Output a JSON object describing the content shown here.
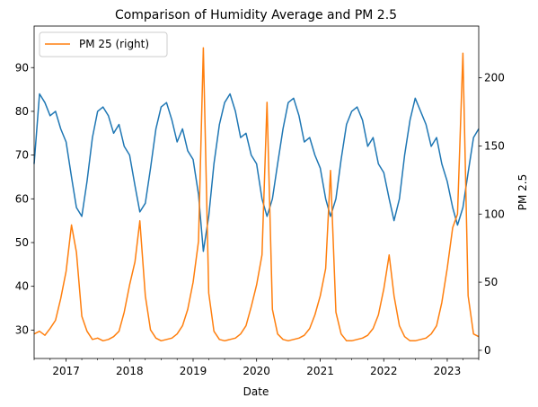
{
  "chart_data": {
    "type": "line",
    "title": "Comparison of Humidity Average and PM 2.5",
    "xlabel": "Date",
    "ylabel_left": "",
    "ylabel_right": "PM 2.5",
    "x_range": [
      "2016-07-01",
      "2023-07-01"
    ],
    "x_tick_labels": [
      "2017",
      "2018",
      "2019",
      "2020",
      "2021",
      "2022",
      "2023"
    ],
    "x_tick_dates": [
      "2017-01-01",
      "2018-01-01",
      "2019-01-01",
      "2020-01-01",
      "2021-01-01",
      "2022-01-01",
      "2023-01-01"
    ],
    "ylim_left": [
      23.5,
      99.5
    ],
    "yticks_left": [
      30,
      40,
      50,
      60,
      70,
      80,
      90
    ],
    "ylim_right": [
      -6,
      238
    ],
    "yticks_right": [
      0,
      50,
      100,
      150,
      200
    ],
    "grid": false,
    "legend": {
      "placement": "top-left",
      "entries": [
        "PM 25 (right)"
      ]
    },
    "series": [
      {
        "axis": "left",
        "color": "#1f77b4",
        "points": [
          [
            "2016-07-01",
            68
          ],
          [
            "2016-08-01",
            84
          ],
          [
            "2016-09-01",
            82
          ],
          [
            "2016-10-01",
            79
          ],
          [
            "2016-11-01",
            80
          ],
          [
            "2016-12-01",
            76
          ],
          [
            "2017-01-01",
            73
          ],
          [
            "2017-02-01",
            65
          ],
          [
            "2017-03-01",
            58
          ],
          [
            "2017-04-01",
            56
          ],
          [
            "2017-05-01",
            64
          ],
          [
            "2017-06-01",
            74
          ],
          [
            "2017-07-01",
            80
          ],
          [
            "2017-08-01",
            81
          ],
          [
            "2017-09-01",
            79
          ],
          [
            "2017-10-01",
            75
          ],
          [
            "2017-11-01",
            77
          ],
          [
            "2017-12-01",
            72
          ],
          [
            "2018-01-01",
            70
          ],
          [
            "2018-02-01",
            63
          ],
          [
            "2018-03-01",
            57
          ],
          [
            "2018-04-01",
            59
          ],
          [
            "2018-05-01",
            67
          ],
          [
            "2018-06-01",
            76
          ],
          [
            "2018-07-01",
            81
          ],
          [
            "2018-08-01",
            82
          ],
          [
            "2018-09-01",
            78
          ],
          [
            "2018-10-01",
            73
          ],
          [
            "2018-11-01",
            76
          ],
          [
            "2018-12-01",
            71
          ],
          [
            "2019-01-01",
            69
          ],
          [
            "2019-02-01",
            61
          ],
          [
            "2019-03-01",
            48
          ],
          [
            "2019-04-01",
            56
          ],
          [
            "2019-05-01",
            68
          ],
          [
            "2019-06-01",
            77
          ],
          [
            "2019-07-01",
            82
          ],
          [
            "2019-08-01",
            84
          ],
          [
            "2019-09-01",
            80
          ],
          [
            "2019-10-01",
            74
          ],
          [
            "2019-11-01",
            75
          ],
          [
            "2019-12-01",
            70
          ],
          [
            "2020-01-01",
            68
          ],
          [
            "2020-02-01",
            60
          ],
          [
            "2020-03-01",
            56
          ],
          [
            "2020-04-01",
            60
          ],
          [
            "2020-05-01",
            68
          ],
          [
            "2020-06-01",
            76
          ],
          [
            "2020-07-01",
            82
          ],
          [
            "2020-08-01",
            83
          ],
          [
            "2020-09-01",
            79
          ],
          [
            "2020-10-01",
            73
          ],
          [
            "2020-11-01",
            74
          ],
          [
            "2020-12-01",
            70
          ],
          [
            "2021-01-01",
            67
          ],
          [
            "2021-02-01",
            60
          ],
          [
            "2021-03-01",
            56
          ],
          [
            "2021-04-01",
            60
          ],
          [
            "2021-05-01",
            69
          ],
          [
            "2021-06-01",
            77
          ],
          [
            "2021-07-01",
            80
          ],
          [
            "2021-08-01",
            81
          ],
          [
            "2021-09-01",
            78
          ],
          [
            "2021-10-01",
            72
          ],
          [
            "2021-11-01",
            74
          ],
          [
            "2021-12-01",
            68
          ],
          [
            "2022-01-01",
            66
          ],
          [
            "2022-02-01",
            60
          ],
          [
            "2022-03-01",
            55
          ],
          [
            "2022-04-01",
            60
          ],
          [
            "2022-05-01",
            70
          ],
          [
            "2022-06-01",
            78
          ],
          [
            "2022-07-01",
            83
          ],
          [
            "2022-08-01",
            80
          ],
          [
            "2022-09-01",
            77
          ],
          [
            "2022-10-01",
            72
          ],
          [
            "2022-11-01",
            74
          ],
          [
            "2022-12-01",
            68
          ],
          [
            "2023-01-01",
            64
          ],
          [
            "2023-02-01",
            58
          ],
          [
            "2023-03-01",
            54
          ],
          [
            "2023-04-01",
            58
          ],
          [
            "2023-05-01",
            66
          ],
          [
            "2023-06-01",
            74
          ],
          [
            "2023-07-01",
            76
          ]
        ]
      },
      {
        "name": "PM 25 (right)",
        "axis": "right",
        "color": "#ff7f0e",
        "points": [
          [
            "2016-07-01",
            12
          ],
          [
            "2016-08-01",
            14
          ],
          [
            "2016-09-01",
            11
          ],
          [
            "2016-10-01",
            16
          ],
          [
            "2016-11-01",
            22
          ],
          [
            "2016-12-01",
            38
          ],
          [
            "2017-01-01",
            58
          ],
          [
            "2017-02-01",
            92
          ],
          [
            "2017-03-01",
            72
          ],
          [
            "2017-04-01",
            25
          ],
          [
            "2017-05-01",
            14
          ],
          [
            "2017-06-01",
            8
          ],
          [
            "2017-07-01",
            9
          ],
          [
            "2017-08-01",
            7
          ],
          [
            "2017-09-01",
            8
          ],
          [
            "2017-10-01",
            10
          ],
          [
            "2017-11-01",
            14
          ],
          [
            "2017-12-01",
            28
          ],
          [
            "2018-01-01",
            48
          ],
          [
            "2018-02-01",
            65
          ],
          [
            "2018-03-01",
            95
          ],
          [
            "2018-04-01",
            40
          ],
          [
            "2018-05-01",
            15
          ],
          [
            "2018-06-01",
            9
          ],
          [
            "2018-07-01",
            7
          ],
          [
            "2018-08-01",
            8
          ],
          [
            "2018-09-01",
            9
          ],
          [
            "2018-10-01",
            12
          ],
          [
            "2018-11-01",
            18
          ],
          [
            "2018-12-01",
            30
          ],
          [
            "2019-01-01",
            50
          ],
          [
            "2019-02-01",
            80
          ],
          [
            "2019-03-01",
            222
          ],
          [
            "2019-04-01",
            42
          ],
          [
            "2019-05-01",
            14
          ],
          [
            "2019-06-01",
            8
          ],
          [
            "2019-07-01",
            7
          ],
          [
            "2019-08-01",
            8
          ],
          [
            "2019-09-01",
            9
          ],
          [
            "2019-10-01",
            12
          ],
          [
            "2019-11-01",
            18
          ],
          [
            "2019-12-01",
            32
          ],
          [
            "2020-01-01",
            48
          ],
          [
            "2020-02-01",
            70
          ],
          [
            "2020-03-01",
            182
          ],
          [
            "2020-04-01",
            30
          ],
          [
            "2020-05-01",
            12
          ],
          [
            "2020-06-01",
            8
          ],
          [
            "2020-07-01",
            7
          ],
          [
            "2020-08-01",
            8
          ],
          [
            "2020-09-01",
            9
          ],
          [
            "2020-10-01",
            11
          ],
          [
            "2020-11-01",
            16
          ],
          [
            "2020-12-01",
            26
          ],
          [
            "2021-01-01",
            40
          ],
          [
            "2021-02-01",
            60
          ],
          [
            "2021-03-01",
            132
          ],
          [
            "2021-04-01",
            28
          ],
          [
            "2021-05-01",
            12
          ],
          [
            "2021-06-01",
            7
          ],
          [
            "2021-07-01",
            7
          ],
          [
            "2021-08-01",
            8
          ],
          [
            "2021-09-01",
            9
          ],
          [
            "2021-10-01",
            11
          ],
          [
            "2021-11-01",
            16
          ],
          [
            "2021-12-01",
            26
          ],
          [
            "2022-01-01",
            45
          ],
          [
            "2022-02-01",
            70
          ],
          [
            "2022-03-01",
            40
          ],
          [
            "2022-04-01",
            18
          ],
          [
            "2022-05-01",
            10
          ],
          [
            "2022-06-01",
            7
          ],
          [
            "2022-07-01",
            7
          ],
          [
            "2022-08-01",
            8
          ],
          [
            "2022-09-01",
            9
          ],
          [
            "2022-10-01",
            12
          ],
          [
            "2022-11-01",
            18
          ],
          [
            "2022-12-01",
            35
          ],
          [
            "2023-01-01",
            60
          ],
          [
            "2023-02-01",
            90
          ],
          [
            "2023-03-01",
            100
          ],
          [
            "2023-04-01",
            218
          ],
          [
            "2023-05-01",
            40
          ],
          [
            "2023-06-01",
            12
          ],
          [
            "2023-07-01",
            10
          ]
        ]
      }
    ]
  }
}
